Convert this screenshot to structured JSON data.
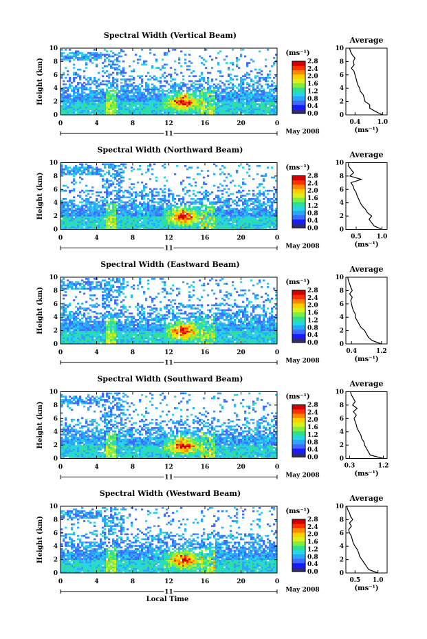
{
  "chart_data": [
    {
      "type": "heatmap",
      "title": "Spectral Width (Vertical Beam)",
      "ylabel": "Height (km)",
      "xticks": [
        "0",
        "4",
        "8",
        "12",
        "16",
        "20",
        "0"
      ],
      "yticks": [
        "0",
        "2",
        "4",
        "6",
        "8",
        "10"
      ],
      "xlim": [
        0,
        24
      ],
      "ylim": [
        0,
        10
      ],
      "date_label": "11",
      "month_label": "May 2008",
      "colorbar": {
        "unit": "(ms⁻¹)",
        "ticks": [
          "0.0",
          "0.4",
          "0.8",
          "1.2",
          "1.6",
          "2.0",
          "2.4",
          "2.8"
        ],
        "range": [
          0,
          2.8
        ]
      },
      "profile": {
        "title": "Average",
        "xlabel": "(ms⁻¹)",
        "xticks": [
          "0.4",
          "1.0"
        ],
        "xlim": [
          0.2,
          1.1
        ],
        "heights": [
          0,
          0.5,
          1,
          1.5,
          2,
          2.5,
          3,
          3.5,
          4,
          4.5,
          5,
          5.5,
          6,
          6.5,
          7,
          7.5,
          8,
          8.5,
          9,
          9.5,
          10
        ],
        "values": [
          1.0,
          0.85,
          0.72,
          0.72,
          0.62,
          0.6,
          0.58,
          0.52,
          0.5,
          0.46,
          0.44,
          0.42,
          0.4,
          0.38,
          0.32,
          0.38,
          0.36,
          0.4,
          0.34,
          0.3,
          0.28
        ]
      }
    },
    {
      "type": "heatmap",
      "title": "Spectral Width (Northward Beam)",
      "ylabel": "Height (km)",
      "xticks": [
        "0",
        "4",
        "8",
        "12",
        "16",
        "20",
        "0"
      ],
      "yticks": [
        "0",
        "2",
        "4",
        "6",
        "8",
        "10"
      ],
      "xlim": [
        0,
        24
      ],
      "ylim": [
        0,
        10
      ],
      "date_label": "11",
      "month_label": "May 2008",
      "colorbar": {
        "unit": "(ms⁻¹)",
        "ticks": [
          "0.0",
          "0.4",
          "0.8",
          "1.2",
          "1.6",
          "2.0",
          "2.4",
          "2.8"
        ],
        "range": [
          0,
          2.8
        ]
      },
      "profile": {
        "title": "Average",
        "xlabel": "(ms⁻¹)",
        "xticks": [
          "0.5",
          "1.0"
        ],
        "xlim": [
          0.3,
          1.1
        ],
        "heights": [
          0,
          0.5,
          1,
          1.5,
          2,
          2.5,
          3,
          3.5,
          4,
          4.5,
          5,
          5.5,
          6,
          6.5,
          7,
          7.5,
          8,
          8.5,
          9,
          9.5,
          10
        ],
        "values": [
          1.0,
          0.85,
          0.8,
          0.75,
          0.8,
          0.72,
          0.68,
          0.62,
          0.58,
          0.55,
          0.52,
          0.5,
          0.46,
          0.44,
          0.4,
          0.6,
          0.38,
          0.45,
          0.4,
          0.35,
          0.35
        ]
      }
    },
    {
      "type": "heatmap",
      "title": "Spectral Width (Eastward Beam)",
      "ylabel": "Height (km)",
      "xticks": [
        "0",
        "4",
        "8",
        "12",
        "16",
        "20",
        "0"
      ],
      "yticks": [
        "0",
        "2",
        "4",
        "6",
        "8",
        "10"
      ],
      "xlim": [
        0,
        24
      ],
      "ylim": [
        0,
        10
      ],
      "date_label": "11",
      "month_label": "May 2008",
      "colorbar": {
        "unit": "(ms⁻¹)",
        "ticks": [
          "0.0",
          "0.4",
          "0.8",
          "1.2",
          "1.6",
          "2.0",
          "2.4",
          "2.8"
        ],
        "range": [
          0,
          2.8
        ]
      },
      "profile": {
        "title": "Average",
        "xlabel": "(ms⁻¹)",
        "xticks": [
          "0.4",
          "1.2"
        ],
        "xlim": [
          0.25,
          1.35
        ],
        "heights": [
          0,
          0.5,
          1,
          1.5,
          2,
          2.5,
          3,
          3.5,
          4,
          4.5,
          5,
          5.5,
          6,
          6.5,
          7,
          7.5,
          8,
          8.5,
          9,
          9.5,
          10
        ],
        "values": [
          1.2,
          0.95,
          0.85,
          0.8,
          0.75,
          0.65,
          0.6,
          0.55,
          0.5,
          0.5,
          0.45,
          0.42,
          0.4,
          0.38,
          0.42,
          0.35,
          0.42,
          0.38,
          0.35,
          0.32,
          0.3
        ]
      }
    },
    {
      "type": "heatmap",
      "title": "Spectral Width (Southward Beam)",
      "ylabel": "Height (km)",
      "xticks": [
        "0",
        "4",
        "8",
        "12",
        "16",
        "20",
        "0"
      ],
      "yticks": [
        "0",
        "2",
        "4",
        "6",
        "8",
        "10"
      ],
      "xlim": [
        0,
        24
      ],
      "ylim": [
        0,
        10
      ],
      "date_label": "11",
      "month_label": "May 2008",
      "colorbar": {
        "unit": "(ms⁻¹)",
        "ticks": [
          "0.0",
          "0.4",
          "0.8",
          "1.2",
          "1.6",
          "2.0",
          "2.4",
          "2.8"
        ],
        "range": [
          0,
          2.8
        ]
      },
      "profile": {
        "title": "Average",
        "xlabel": "(ms⁻¹)",
        "xticks": [
          "0.3",
          "1.2"
        ],
        "xlim": [
          0.2,
          1.3
        ],
        "heights": [
          0,
          0.5,
          1,
          1.5,
          2,
          2.5,
          3,
          3.5,
          4,
          4.5,
          5,
          5.5,
          6,
          6.5,
          7,
          7.5,
          8,
          8.5,
          9,
          9.5,
          10
        ],
        "values": [
          1.2,
          0.85,
          0.8,
          0.75,
          0.7,
          0.68,
          0.62,
          0.6,
          0.55,
          0.5,
          0.48,
          0.45,
          0.42,
          0.48,
          0.4,
          0.5,
          0.38,
          0.45,
          0.4,
          0.35,
          0.32
        ]
      }
    },
    {
      "type": "heatmap",
      "title": "Spectral Width (Westward Beam)",
      "ylabel": "Height (km)",
      "xlabel": "Local Time",
      "xticks": [
        "0",
        "4",
        "8",
        "12",
        "16",
        "20",
        "0"
      ],
      "yticks": [
        "0",
        "2",
        "4",
        "6",
        "8",
        "10"
      ],
      "xlim": [
        0,
        24
      ],
      "ylim": [
        0,
        10
      ],
      "date_label": "11",
      "month_label": "May 2008",
      "colorbar": {
        "unit": "(ms⁻¹)",
        "ticks": [
          "0.0",
          "0.4",
          "0.8",
          "1.2",
          "1.6",
          "2.0",
          "2.4",
          "2.8"
        ],
        "range": [
          0,
          2.8
        ]
      },
      "profile": {
        "title": "Average",
        "xlabel": "(ms⁻¹)",
        "xticks": [
          "0.5",
          "1.0"
        ],
        "xlim": [
          0.3,
          1.2
        ],
        "heights": [
          0,
          0.5,
          1,
          1.5,
          2,
          2.5,
          3,
          3.5,
          4,
          4.5,
          5,
          5.5,
          6,
          6.5,
          7,
          7.5,
          8,
          8.5,
          9,
          9.5,
          10
        ],
        "values": [
          1.0,
          0.8,
          0.75,
          0.7,
          0.65,
          0.6,
          0.58,
          0.55,
          0.5,
          0.46,
          0.44,
          0.42,
          0.38,
          0.36,
          0.42,
          0.38,
          0.45,
          0.4,
          0.38,
          0.34,
          0.32
        ]
      }
    }
  ],
  "palette": [
    "#2b2b7a",
    "#1a1aff",
    "#3f6bff",
    "#2aa6ff",
    "#26d7e0",
    "#30e090",
    "#80ef40",
    "#d8f020",
    "#ffd000",
    "#ff8800",
    "#ff3000",
    "#d00000"
  ]
}
